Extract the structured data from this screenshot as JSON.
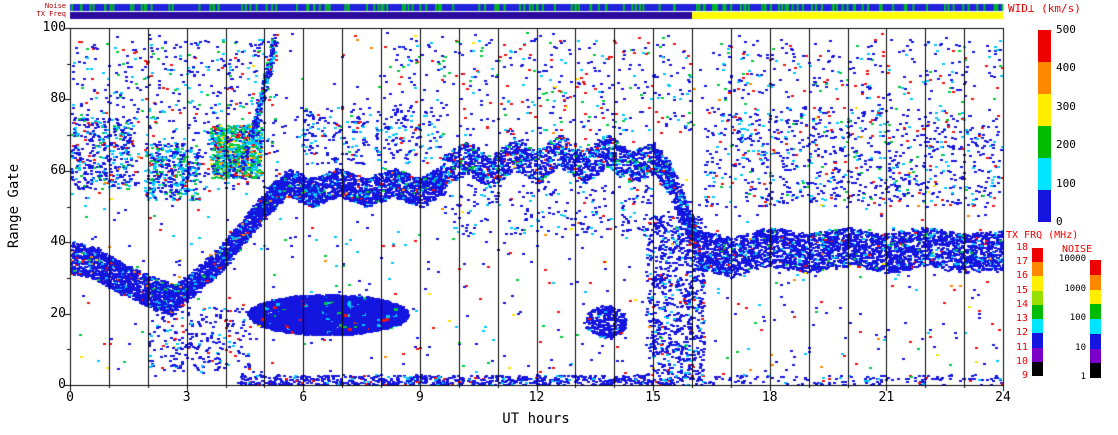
{
  "strips": {
    "noise_label": "Noise",
    "txfreq_label": "TX Freq",
    "noise_base_color": "#2222dd",
    "noise_tick_color": "#00bb22",
    "noise_tick_count": 150,
    "tx_transition_hour": 16,
    "tx_color_before": "#2a0b9e",
    "tx_color_after": "#ffff00"
  },
  "axes": {
    "ylabel": "Range Gate",
    "xlabel": "UT hours",
    "yticks": [
      "0",
      "20",
      "40",
      "60",
      "80",
      "100"
    ],
    "ytick_values": [
      0,
      20,
      40,
      60,
      80,
      100
    ],
    "xticks": [
      "0",
      "3",
      "6",
      "9",
      "12",
      "15",
      "18",
      "21",
      "24"
    ],
    "xtick_values": [
      0,
      3,
      6,
      9,
      12,
      15,
      18,
      21,
      24
    ],
    "xlim": [
      0,
      24
    ],
    "ylim": [
      0,
      100
    ]
  },
  "legends": {
    "wid": {
      "title": "WID⊥ (km/s)",
      "ticks": [
        "500",
        "400",
        "300",
        "200",
        "100",
        "0"
      ],
      "colors": [
        "#ee0000",
        "#ff8800",
        "#ffee00",
        "#00bb00",
        "#00e5ff",
        "#1515e0"
      ]
    },
    "txfrq": {
      "title": "TX FRQ (MHz)",
      "ticks": [
        "18",
        "17",
        "16",
        "15",
        "14",
        "13",
        "12",
        "11",
        "10",
        "9"
      ],
      "colors": [
        "#ee0000",
        "#ff8800",
        "#ffee00",
        "#99e000",
        "#00bb00",
        "#00e5ff",
        "#1515e0",
        "#7a00c8",
        "#000000"
      ]
    },
    "noise": {
      "title": "NOISE",
      "ticks": [
        "10000",
        "1000",
        "100",
        "10",
        "1"
      ],
      "colors": [
        "#ee0000",
        "#ff8800",
        "#ffee00",
        "#00bb00",
        "#00e5ff",
        "#1515e0",
        "#7a00c8",
        "#000000"
      ]
    }
  },
  "chart_data": {
    "type": "scatter",
    "title": "",
    "xlabel": "UT hours",
    "ylabel": "Range Gate",
    "xlim": [
      0,
      24
    ],
    "ylim": [
      0,
      100
    ],
    "hour_gridlines": true,
    "color_scale": {
      "label": "WID⊥ (km/s)",
      "range": [
        0,
        500
      ],
      "mapping": "blue=low width, cyan/green=mid, red=high"
    },
    "seed": 1337,
    "point_size": [
      3,
      2
    ],
    "features": [
      {
        "kind": "path",
        "name": "early-band",
        "points": [
          [
            0,
            36
          ],
          [
            0.7,
            34
          ],
          [
            1.3,
            30
          ],
          [
            2.1,
            26
          ],
          [
            2.6,
            24
          ]
        ],
        "width": 9,
        "n": 1400,
        "colors": {
          "#1515e0": 0.87,
          "#00c8ff": 0.08,
          "#00c83c": 0.02,
          "#f01010": 0.02,
          "#ff8800": 0.01
        }
      },
      {
        "kind": "path",
        "name": "rising-band",
        "points": [
          [
            2.6,
            24
          ],
          [
            3.2,
            29
          ],
          [
            3.9,
            36
          ],
          [
            4.5,
            44
          ],
          [
            5.1,
            52
          ],
          [
            5.6,
            57
          ]
        ],
        "width": 7,
        "n": 1600,
        "colors": {
          "#1515e0": 0.87,
          "#00c8ff": 0.08,
          "#00c83c": 0.02,
          "#f01010": 0.02,
          "#ff8800": 0.01
        }
      },
      {
        "kind": "path",
        "name": "plateau-band",
        "points": [
          [
            5.6,
            57
          ],
          [
            6.2,
            54
          ],
          [
            6.9,
            57
          ],
          [
            7.6,
            54
          ],
          [
            8.3,
            57
          ],
          [
            9.0,
            54
          ],
          [
            9.6,
            58
          ]
        ],
        "width": 8,
        "n": 1700,
        "colors": {
          "#1515e0": 0.85,
          "#00c8ff": 0.1,
          "#00c83c": 0.02,
          "#f01010": 0.02,
          "#ff8800": 0.01
        }
      },
      {
        "kind": "path",
        "name": "midday-band",
        "points": [
          [
            9.6,
            60
          ],
          [
            10.2,
            64
          ],
          [
            10.8,
            60
          ],
          [
            11.4,
            65
          ],
          [
            12.0,
            61
          ],
          [
            12.6,
            66
          ],
          [
            13.2,
            61
          ],
          [
            13.8,
            66
          ],
          [
            14.4,
            61
          ],
          [
            15.0,
            64
          ],
          [
            15.4,
            58
          ]
        ],
        "width": 9,
        "n": 1700,
        "colors": {
          "#1515e0": 0.78,
          "#00c8ff": 0.13,
          "#00c83c": 0.05,
          "#f01010": 0.04
        }
      },
      {
        "kind": "path",
        "name": "descent-16h",
        "points": [
          [
            15.4,
            58
          ],
          [
            15.8,
            48
          ],
          [
            16.1,
            40
          ]
        ],
        "width": 8,
        "n": 350,
        "colors": {
          "#1515e0": 0.9,
          "#00c8ff": 0.1
        }
      },
      {
        "kind": "ellipse",
        "name": "dense-blob-5-8h",
        "cx": 6.6,
        "cy": 20,
        "rx": 2.05,
        "ry": 5.6,
        "n": 3000,
        "size": [
          4,
          3
        ],
        "colors": {
          "#1515e0": 0.94,
          "#00c8ff": 0.04,
          "#00c83c": 0.01,
          "#f01010": 0.01
        }
      },
      {
        "kind": "box",
        "name": "early-high-scatter",
        "x": [
          0,
          5.3
        ],
        "y": [
          55,
          97
        ],
        "n": 600,
        "colors": {
          "#1515e0": 0.58,
          "#00c8ff": 0.22,
          "#00c83c": 0.1,
          "#f01010": 0.1
        }
      },
      {
        "kind": "box",
        "name": "morning-color-cluster",
        "x": [
          3.6,
          4.9
        ],
        "y": [
          58,
          73
        ],
        "n": 850,
        "colors": {
          "#00c8ff": 0.3,
          "#00c83c": 0.3,
          "#ffe100": 0.1,
          "#1515e0": 0.2,
          "#f01010": 0.05,
          "#ff8800": 0.05
        }
      },
      {
        "kind": "path",
        "name": "steep-streak-5h",
        "points": [
          [
            4.4,
            62
          ],
          [
            4.7,
            72
          ],
          [
            4.9,
            80
          ],
          [
            5.1,
            90
          ],
          [
            5.25,
            97
          ]
        ],
        "width": 3,
        "n": 280,
        "colors": {
          "#1515e0": 0.6,
          "#00c8ff": 0.25,
          "#00c83c": 0.1,
          "#f01010": 0.05
        }
      },
      {
        "kind": "box",
        "name": "cluster-0-2h-upper",
        "x": [
          0,
          1.6
        ],
        "y": [
          55,
          75
        ],
        "n": 300,
        "colors": {
          "#1515e0": 0.7,
          "#00c8ff": 0.2,
          "#00c83c": 0.05,
          "#f01010": 0.05
        }
      },
      {
        "kind": "box",
        "name": "cluster-2-3h-upper",
        "x": [
          1.9,
          3.3
        ],
        "y": [
          52,
          68
        ],
        "n": 330,
        "colors": {
          "#1515e0": 0.5,
          "#00c8ff": 0.3,
          "#00c83c": 0.15,
          "#f01010": 0.05
        }
      },
      {
        "kind": "box",
        "name": "above-plateau-scatter",
        "x": [
          5.8,
          9.5
        ],
        "y": [
          62,
          78
        ],
        "n": 260,
        "colors": {
          "#1515e0": 0.75,
          "#00c8ff": 0.2,
          "#f01010": 0.05
        }
      },
      {
        "kind": "path",
        "name": "evening-band",
        "points": [
          [
            16.1,
            38
          ],
          [
            17,
            36
          ],
          [
            18,
            39
          ],
          [
            19,
            37
          ],
          [
            20,
            39
          ],
          [
            21,
            37
          ],
          [
            22,
            39
          ],
          [
            23,
            37
          ],
          [
            24,
            38
          ]
        ],
        "width": 11,
        "n": 3200,
        "colors": {
          "#1515e0": 0.88,
          "#00c8ff": 0.08,
          "#00c83c": 0.02,
          "#f01010": 0.02
        }
      },
      {
        "kind": "box",
        "name": "evening-upper-scatter",
        "x": [
          16.3,
          24
        ],
        "y": [
          50,
          78
        ],
        "n": 850,
        "colors": {
          "#1515e0": 0.7,
          "#00c8ff": 0.18,
          "#f01010": 0.07,
          "#00c83c": 0.05
        }
      },
      {
        "kind": "box",
        "name": "bottom-row",
        "x": [
          4.3,
          16.3
        ],
        "y": [
          0,
          3
        ],
        "n": 800,
        "colors": {
          "#1515e0": 0.85,
          "#00c8ff": 0.1,
          "#f01010": 0.05
        }
      },
      {
        "kind": "box",
        "name": "bottom-row-late",
        "x": [
          16.3,
          24
        ],
        "y": [
          0,
          3
        ],
        "n": 150,
        "colors": {
          "#1515e0": 0.85,
          "#00c8ff": 0.1,
          "#f01010": 0.05
        }
      },
      {
        "kind": "box",
        "name": "pre16-vertical-scatter",
        "x": [
          14.8,
          16.3
        ],
        "y": [
          3,
          48
        ],
        "n": 800,
        "colors": {
          "#1515e0": 0.85,
          "#00c8ff": 0.1,
          "#f01010": 0.05
        }
      },
      {
        "kind": "ellipse",
        "name": "small-blob-14h",
        "cx": 13.75,
        "cy": 18,
        "rx": 0.55,
        "ry": 4.5,
        "n": 320,
        "colors": {
          "#1515e0": 0.95,
          "#00c8ff": 0.05
        }
      },
      {
        "kind": "box",
        "name": "midday-high-sparse",
        "x": [
          8,
          16
        ],
        "y": [
          70,
          97
        ],
        "n": 360,
        "colors": {
          "#1515e0": 0.6,
          "#00c8ff": 0.15,
          "#00c83c": 0.08,
          "#f01010": 0.17
        }
      },
      {
        "kind": "box",
        "name": "global-sparse",
        "x": [
          0,
          24
        ],
        "y": [
          2,
          99
        ],
        "n": 950,
        "colors": {
          "#1515e0": 0.5,
          "#00c8ff": 0.14,
          "#00c83c": 0.12,
          "#f01010": 0.16,
          "#ff8800": 0.04,
          "#ffe100": 0.04
        }
      },
      {
        "kind": "box",
        "name": "early-low-sparse",
        "x": [
          2,
          4.6
        ],
        "y": [
          4,
          22
        ],
        "n": 240,
        "colors": {
          "#1515e0": 0.8,
          "#00c8ff": 0.1,
          "#f01010": 0.1
        }
      },
      {
        "kind": "box",
        "name": "below-midband-sparse",
        "x": [
          9.6,
          15
        ],
        "y": [
          42,
          56
        ],
        "n": 200,
        "colors": {
          "#1515e0": 0.8,
          "#00c8ff": 0.2
        }
      },
      {
        "kind": "box",
        "name": "evening-high-sparse",
        "x": [
          16.5,
          24
        ],
        "y": [
          80,
          97
        ],
        "n": 220,
        "colors": {
          "#1515e0": 0.6,
          "#00c8ff": 0.15,
          "#f01010": 0.15,
          "#00c83c": 0.1
        }
      }
    ]
  }
}
